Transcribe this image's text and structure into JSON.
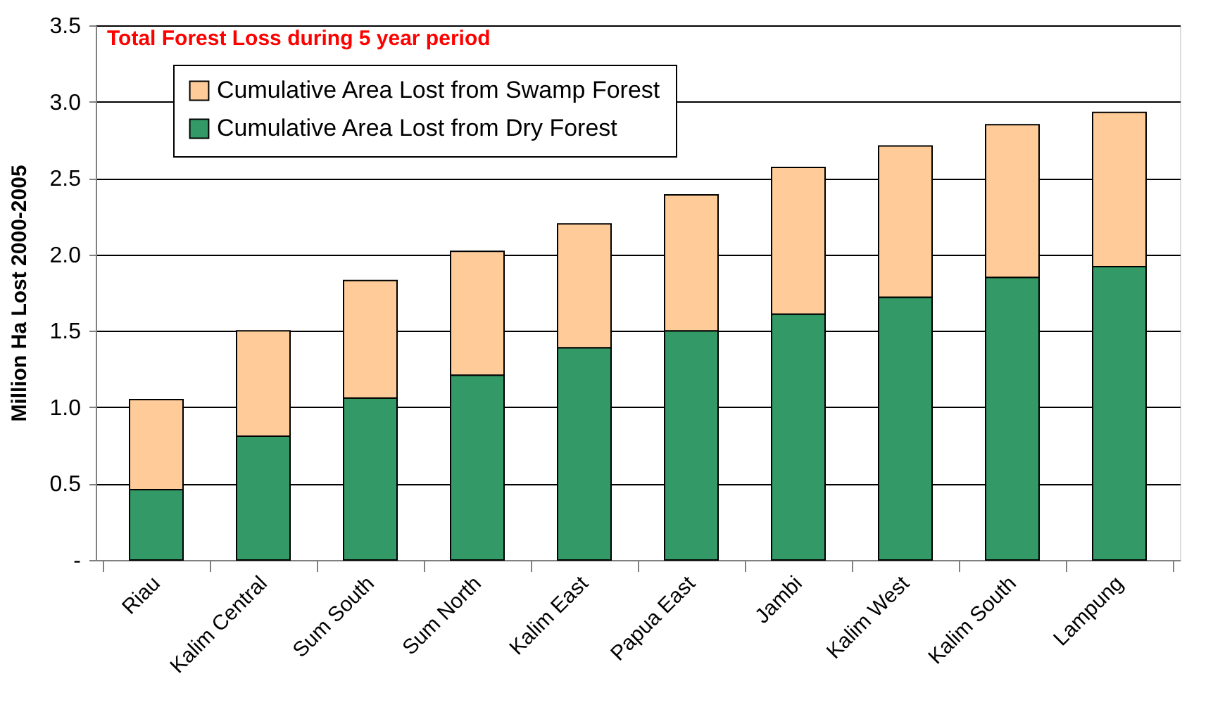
{
  "chart_data": {
    "type": "bar",
    "stacked": true,
    "ylabel": "Million Ha Lost 2000-2005",
    "annotations": [
      "Total Forest Loss during 5 year period"
    ],
    "categories": [
      "Riau",
      "Kalim Central",
      "Sum South",
      "Sum North",
      "Kalim East",
      "Papua East",
      "Jambi",
      "Kalim West",
      "Kalim South",
      "Lampung"
    ],
    "series": [
      {
        "name": "Cumulative Area Lost from Dry Forest",
        "color": "#339966",
        "values": [
          0.46,
          0.81,
          1.06,
          1.21,
          1.39,
          1.5,
          1.61,
          1.72,
          1.85,
          1.92
        ]
      },
      {
        "name": "Cumulative Area Lost from Swamp Forest",
        "color": "#ffcc99",
        "values": [
          0.59,
          0.69,
          0.77,
          0.81,
          0.81,
          0.89,
          0.96,
          0.99,
          1.0,
          1.01
        ]
      }
    ],
    "ylim": [
      0,
      3.5
    ],
    "yticks": [
      {
        "value": 0,
        "label": "-"
      },
      0.5,
      {
        "value": 1,
        "label": "1.0"
      },
      1.5,
      {
        "value": 2,
        "label": "2.0"
      },
      2.5,
      {
        "value": 3,
        "label": "3.0"
      },
      3.5
    ],
    "grid": "y",
    "legend": "top left"
  }
}
